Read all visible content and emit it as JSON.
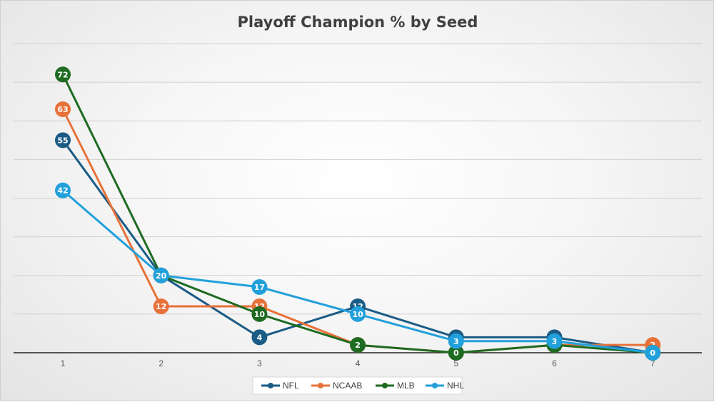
{
  "chart_data": {
    "type": "line",
    "title": "Playoff Champion % by Seed",
    "xlabel": "",
    "ylabel": "",
    "x": [
      1,
      2,
      3,
      4,
      5,
      6,
      7
    ],
    "x_tick_labels": [
      "1",
      "2",
      "3",
      "4",
      "5",
      "6",
      "7"
    ],
    "ylim": [
      0,
      80
    ],
    "y_gridlines": [
      10,
      20,
      30,
      40,
      50,
      60,
      70,
      80
    ],
    "grid": true,
    "legend_position": "bottom",
    "series": [
      {
        "name": "NFL",
        "color": "#1b5b86",
        "values": [
          55,
          20,
          4,
          12,
          4,
          4,
          0
        ]
      },
      {
        "name": "NCAAB",
        "color": "#e8713a",
        "values": [
          63,
          12,
          12,
          2,
          0,
          2,
          2
        ]
      },
      {
        "name": "MLB",
        "color": "#1e6b22",
        "values": [
          72,
          20,
          10,
          2,
          0,
          2,
          0
        ]
      },
      {
        "name": "NHL",
        "color": "#22a0db",
        "values": [
          42,
          20,
          17,
          10,
          3,
          3,
          0
        ]
      }
    ]
  }
}
